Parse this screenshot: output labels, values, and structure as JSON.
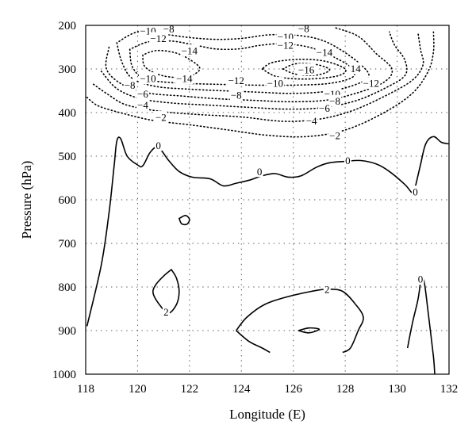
{
  "chart_data": {
    "type": "contour",
    "xlabel": "Longitude (E)",
    "ylabel": "Pressure (hPa)",
    "xlim": [
      118,
      132
    ],
    "ylim": [
      1000,
      200
    ],
    "y_axis_reversed": true,
    "x_ticks": [
      118,
      120,
      122,
      124,
      126,
      128,
      130,
      132
    ],
    "y_ticks": [
      200,
      300,
      400,
      500,
      600,
      700,
      800,
      900,
      1000
    ],
    "grid": true,
    "negative_contours_style": "dotted",
    "nonnegative_contours_style": "solid",
    "contours": [
      {
        "level": -2,
        "style": "dotted",
        "points": [
          [
            118.05,
            365
          ],
          [
            118.5,
            385
          ],
          [
            119.5,
            403
          ],
          [
            120.6,
            418
          ],
          [
            122.0,
            428
          ],
          [
            123.5,
            440
          ],
          [
            125.0,
            452
          ],
          [
            126.5,
            455
          ],
          [
            128.0,
            440
          ],
          [
            129.5,
            400
          ],
          [
            130.6,
            355
          ],
          [
            131.2,
            305
          ],
          [
            131.4,
            260
          ],
          [
            131.4,
            215
          ]
        ]
      },
      {
        "level": -4,
        "style": "dotted",
        "points": [
          [
            118.3,
            335
          ],
          [
            118.9,
            360
          ],
          [
            119.6,
            383
          ],
          [
            121.0,
            398
          ],
          [
            122.5,
            405
          ],
          [
            124.0,
            410
          ],
          [
            125.6,
            420
          ],
          [
            127.0,
            415
          ],
          [
            128.3,
            395
          ],
          [
            129.6,
            360
          ],
          [
            130.6,
            325
          ],
          [
            131.0,
            290
          ],
          [
            130.9,
            255
          ],
          [
            130.8,
            215
          ]
        ]
      },
      {
        "level": -6,
        "style": "dotted",
        "points": [
          [
            118.6,
            305
          ],
          [
            119.2,
            345
          ],
          [
            120.1,
            368
          ],
          [
            121.3,
            378
          ],
          [
            122.8,
            383
          ],
          [
            124.3,
            388
          ],
          [
            125.7,
            392
          ],
          [
            127.1,
            389
          ],
          [
            128.4,
            373
          ],
          [
            129.5,
            345
          ],
          [
            130.3,
            315
          ],
          [
            130.3,
            280
          ],
          [
            129.9,
            245
          ],
          [
            129.7,
            215
          ]
        ]
      },
      {
        "level": -8,
        "style": "dotted",
        "points": [
          [
            118.9,
            250
          ],
          [
            118.8,
            300
          ],
          [
            119.4,
            335
          ],
          [
            120.4,
            355
          ],
          [
            121.7,
            362
          ],
          [
            123.0,
            368
          ],
          [
            124.5,
            372
          ],
          [
            125.8,
            375
          ],
          [
            127.2,
            372
          ],
          [
            128.4,
            356
          ],
          [
            129.5,
            330
          ],
          [
            129.8,
            300
          ],
          [
            129.2,
            265
          ],
          [
            128.5,
            225
          ],
          [
            127.6,
            205
          ]
        ]
      },
      {
        "level": -10,
        "style": "dotted",
        "points": [
          [
            119.2,
            240
          ],
          [
            119.4,
            285
          ],
          [
            119.8,
            322
          ],
          [
            120.7,
            340
          ],
          [
            121.9,
            346
          ],
          [
            123.3,
            350
          ],
          [
            124.6,
            353
          ],
          [
            125.9,
            356
          ],
          [
            127.2,
            352
          ],
          [
            128.2,
            340
          ],
          [
            128.9,
            318
          ],
          [
            128.6,
            290
          ],
          [
            127.8,
            255
          ],
          [
            127.0,
            232
          ],
          [
            126.0,
            222
          ],
          [
            125.0,
            222
          ],
          [
            124.0,
            230
          ],
          [
            123.0,
            232
          ],
          [
            122.0,
            228
          ],
          [
            121.0,
            220
          ],
          [
            120.0,
            215
          ],
          [
            119.2,
            240
          ]
        ],
        "closed": true
      },
      {
        "level": -12,
        "style": "dotted",
        "points": [
          [
            119.7,
            255
          ],
          [
            119.8,
            295
          ],
          [
            120.3,
            323
          ],
          [
            121.5,
            332
          ],
          [
            123.0,
            335
          ],
          [
            124.5,
            337
          ],
          [
            126.0,
            337
          ],
          [
            127.4,
            333
          ],
          [
            128.3,
            318
          ],
          [
            128.2,
            295
          ],
          [
            127.4,
            268
          ],
          [
            126.6,
            250
          ],
          [
            125.6,
            242
          ],
          [
            124.7,
            246
          ],
          [
            123.9,
            254
          ],
          [
            123.0,
            254
          ],
          [
            122.2,
            245
          ],
          [
            121.3,
            236
          ],
          [
            120.4,
            238
          ],
          [
            119.7,
            255
          ]
        ],
        "closed": true
      },
      {
        "level": -14,
        "style": "dotted",
        "points": [
          [
            120.2,
            268
          ],
          [
            120.3,
            296
          ],
          [
            121.0,
            316
          ],
          [
            121.9,
            318
          ],
          [
            122.4,
            300
          ],
          [
            122.0,
            278
          ],
          [
            121.4,
            262
          ],
          [
            120.7,
            258
          ],
          [
            120.2,
            268
          ]
        ],
        "closed": true
      },
      {
        "level": -14,
        "style": "dotted",
        "points": [
          [
            124.8,
            300
          ],
          [
            125.4,
            318
          ],
          [
            126.5,
            323
          ],
          [
            127.7,
            316
          ],
          [
            128.0,
            300
          ],
          [
            127.2,
            282
          ],
          [
            126.2,
            278
          ],
          [
            125.2,
            285
          ],
          [
            124.8,
            300
          ]
        ],
        "closed": true
      },
      {
        "level": -16,
        "style": "dotted",
        "points": [
          [
            125.6,
            300
          ],
          [
            126.1,
            312
          ],
          [
            126.9,
            314
          ],
          [
            127.4,
            302
          ],
          [
            126.9,
            290
          ],
          [
            126.1,
            288
          ],
          [
            125.6,
            300
          ]
        ],
        "closed": true
      },
      {
        "level": 0,
        "style": "solid",
        "points": [
          [
            118.05,
            890
          ],
          [
            118.6,
            750
          ],
          [
            118.9,
            630
          ],
          [
            119.1,
            520
          ],
          [
            119.2,
            465
          ],
          [
            119.35,
            460
          ],
          [
            119.6,
            500
          ],
          [
            120.0,
            520
          ],
          [
            120.2,
            522
          ],
          [
            120.5,
            490
          ],
          [
            120.8,
            480
          ],
          [
            121.2,
            510
          ],
          [
            121.6,
            535
          ],
          [
            122.1,
            548
          ],
          [
            122.8,
            552
          ],
          [
            123.3,
            568
          ],
          [
            123.8,
            562
          ],
          [
            124.3,
            555
          ],
          [
            124.8,
            545
          ],
          [
            125.3,
            540
          ],
          [
            125.8,
            548
          ],
          [
            126.3,
            545
          ],
          [
            126.9,
            525
          ],
          [
            127.4,
            515
          ],
          [
            128.0,
            512
          ],
          [
            128.6,
            510
          ],
          [
            129.2,
            518
          ],
          [
            129.7,
            535
          ],
          [
            130.3,
            565
          ],
          [
            130.6,
            585
          ],
          [
            130.7,
            570
          ],
          [
            130.9,
            520
          ],
          [
            131.1,
            472
          ],
          [
            131.4,
            455
          ],
          [
            131.7,
            468
          ],
          [
            132.0,
            472
          ]
        ]
      },
      {
        "level": 0,
        "style": "solid",
        "points": [
          [
            121.6,
            643
          ],
          [
            121.7,
            655
          ],
          [
            121.9,
            656
          ],
          [
            122.0,
            645
          ],
          [
            121.85,
            636
          ],
          [
            121.6,
            643
          ]
        ],
        "closed": true
      },
      {
        "level": 0,
        "style": "solid",
        "points": [
          [
            130.4,
            940
          ],
          [
            130.6,
            880
          ],
          [
            130.8,
            830
          ],
          [
            130.9,
            790
          ],
          [
            130.95,
            780
          ],
          [
            131.05,
            790
          ],
          [
            131.2,
            860
          ],
          [
            131.4,
            960
          ],
          [
            131.45,
            1000
          ]
        ]
      },
      {
        "level": 2,
        "style": "solid",
        "points": [
          [
            121.3,
            760
          ],
          [
            121.0,
            775
          ],
          [
            120.7,
            795
          ],
          [
            120.6,
            815
          ],
          [
            120.9,
            845
          ],
          [
            121.2,
            860
          ],
          [
            121.5,
            840
          ],
          [
            121.6,
            810
          ],
          [
            121.5,
            780
          ],
          [
            121.3,
            760
          ]
        ],
        "closed": true
      },
      {
        "level": 2,
        "style": "solid",
        "points": [
          [
            123.8,
            900
          ],
          [
            124.2,
            870
          ],
          [
            124.9,
            840
          ],
          [
            125.8,
            822
          ],
          [
            126.7,
            810
          ],
          [
            127.3,
            805
          ],
          [
            127.9,
            810
          ],
          [
            128.4,
            840
          ],
          [
            128.7,
            870
          ],
          [
            128.5,
            900
          ],
          [
            128.2,
            940
          ],
          [
            127.9,
            950
          ]
        ]
      },
      {
        "level": 2,
        "style": "solid",
        "points": [
          [
            123.8,
            900
          ],
          [
            124.3,
            925
          ],
          [
            124.8,
            940
          ],
          [
            125.1,
            950
          ]
        ]
      },
      {
        "level": 2,
        "style": "solid",
        "points": [
          [
            126.2,
            900
          ],
          [
            126.6,
            894
          ],
          [
            127.0,
            897
          ],
          [
            126.6,
            905
          ],
          [
            126.2,
            900
          ]
        ],
        "closed": true
      }
    ],
    "contour_labels": [
      {
        "text": "−10",
        "x": 120.4,
        "y": 213
      },
      {
        "text": "−8",
        "x": 121.2,
        "y": 208
      },
      {
        "text": "−12",
        "x": 120.8,
        "y": 230
      },
      {
        "text": "−8",
        "x": 126.4,
        "y": 207
      },
      {
        "text": "−10",
        "x": 125.7,
        "y": 226
      },
      {
        "text": "−12",
        "x": 125.7,
        "y": 245
      },
      {
        "text": "−14",
        "x": 122.0,
        "y": 258
      },
      {
        "text": "−14",
        "x": 127.2,
        "y": 262
      },
      {
        "text": "−16",
        "x": 126.5,
        "y": 302
      },
      {
        "text": "14",
        "x": 128.4,
        "y": 299
      },
      {
        "text": "−10",
        "x": 120.4,
        "y": 322
      },
      {
        "text": "−14",
        "x": 121.8,
        "y": 322
      },
      {
        "text": "−12",
        "x": 123.8,
        "y": 326
      },
      {
        "text": "−12",
        "x": 129.0,
        "y": 333
      },
      {
        "text": "−10",
        "x": 125.3,
        "y": 333
      },
      {
        "text": "−8",
        "x": 119.7,
        "y": 337
      },
      {
        "text": "−10",
        "x": 127.5,
        "y": 357
      },
      {
        "text": "−6",
        "x": 120.2,
        "y": 357
      },
      {
        "text": "−8",
        "x": 123.8,
        "y": 360
      },
      {
        "text": "−8",
        "x": 127.6,
        "y": 374
      },
      {
        "text": "−4",
        "x": 120.2,
        "y": 383
      },
      {
        "text": "−6",
        "x": 127.2,
        "y": 390
      },
      {
        "text": "−2",
        "x": 120.9,
        "y": 411
      },
      {
        "text": "−4",
        "x": 126.7,
        "y": 419
      },
      {
        "text": "−2",
        "x": 127.6,
        "y": 453
      },
      {
        "text": "0",
        "x": 120.8,
        "y": 475
      },
      {
        "text": "0",
        "x": 124.7,
        "y": 535
      },
      {
        "text": "0",
        "x": 128.1,
        "y": 510
      },
      {
        "text": "0",
        "x": 130.7,
        "y": 582
      },
      {
        "text": "0",
        "x": 130.9,
        "y": 782
      },
      {
        "text": "2",
        "x": 127.3,
        "y": 805
      },
      {
        "text": "2",
        "x": 121.1,
        "y": 857
      }
    ]
  }
}
